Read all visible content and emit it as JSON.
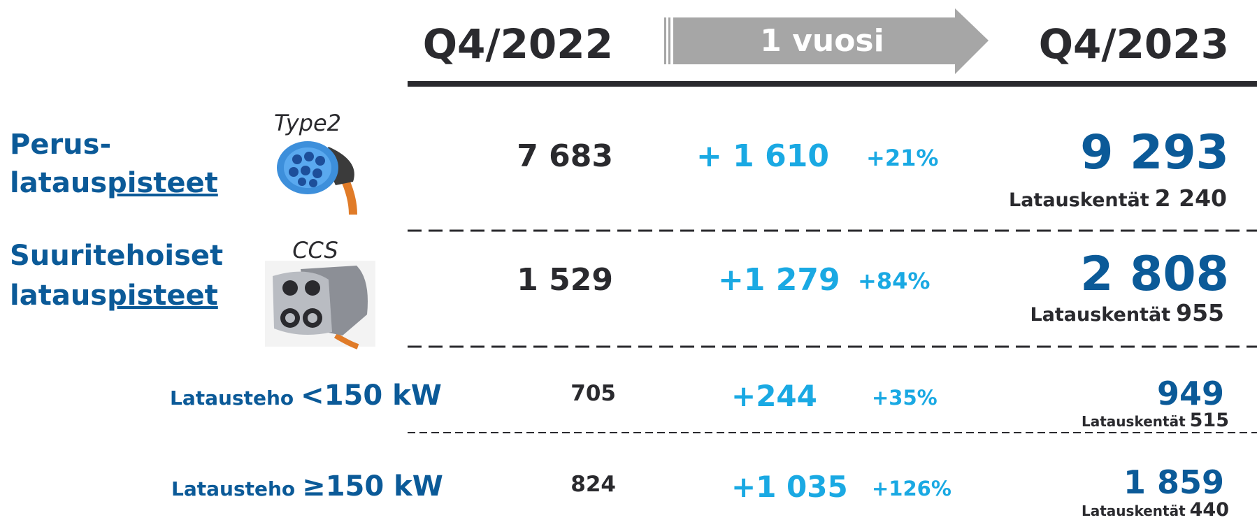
{
  "header": {
    "from": "Q4/2022",
    "span": "1 vuosi",
    "to": "Q4/2023"
  },
  "rows": [
    {
      "label_1": "Perus-",
      "label_2": "lataus",
      "label_2_underlined": "pisteet",
      "connector": "Type2",
      "q4_2022": "7 683",
      "change": "+ 1 610",
      "change_pct": "+21%",
      "q4_2023": "9 293",
      "sites_label": "Latauskentät",
      "sites": "2 240"
    },
    {
      "label_1": "Suuritehoiset",
      "label_2": "lataus",
      "label_2_underlined": "pisteet",
      "connector": "CCS",
      "q4_2022": "1 529",
      "change": "+1 279",
      "change_pct": "+84%",
      "q4_2023": "2 808",
      "sites_label": "Latauskentät",
      "sites": "955"
    }
  ],
  "sub_rows": [
    {
      "label": "Latausteho",
      "power": "<150 kW",
      "q4_2022": "705",
      "change": "+244",
      "change_pct": "+35%",
      "q4_2023": "949",
      "sites_label": "Latauskentät",
      "sites": "515"
    },
    {
      "label": "Latausteho",
      "power": "≥150 kW",
      "q4_2022": "824",
      "change": "+1 035",
      "change_pct": "+126%",
      "q4_2023": "1 859",
      "sites_label": "Latauskentät",
      "sites": "440"
    }
  ]
}
